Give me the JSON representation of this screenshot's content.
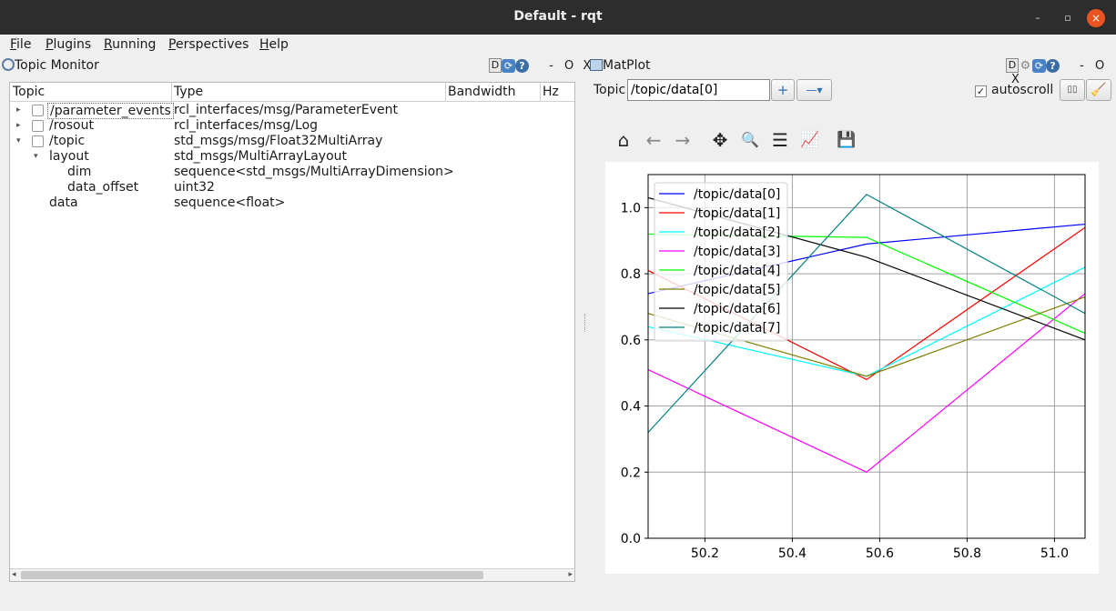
{
  "window": {
    "title": "Default - rqt",
    "minimize": "–",
    "maximize": "▫",
    "close": "×"
  },
  "menu": [
    {
      "first": "F",
      "rest": "ile"
    },
    {
      "first": "P",
      "rest": "lugins"
    },
    {
      "first": "R",
      "rest": "unning"
    },
    {
      "first": "P",
      "rest": "erspectives",
      "prefix": ""
    },
    {
      "first": "H",
      "rest": "elp"
    }
  ],
  "topic_monitor": {
    "title": "Topic Monitor",
    "controls": {
      "d": "D",
      "dash": "-",
      "o": "O",
      "x": "X"
    },
    "columns": [
      "Topic",
      "Type",
      "Bandwidth",
      "Hz"
    ],
    "rows": [
      {
        "arrow": "▸",
        "checkbox": true,
        "topic": "/parameter_events",
        "type": "rcl_interfaces/msg/ParameterEvent"
      },
      {
        "arrow": "▸",
        "checkbox": true,
        "topic": "/rosout",
        "type": "rcl_interfaces/msg/Log"
      },
      {
        "arrow": "▾",
        "checkbox": true,
        "topic": "/topic",
        "type": "std_msgs/msg/Float32MultiArray"
      },
      {
        "arrow": "▾",
        "checkbox": false,
        "topic": "layout",
        "type": "std_msgs/MultiArrayLayout"
      },
      {
        "arrow": "",
        "checkbox": false,
        "topic": "dim",
        "type": "sequence<std_msgs/MultiArrayDimension>"
      },
      {
        "arrow": "",
        "checkbox": false,
        "topic": "data_offset",
        "type": "uint32"
      },
      {
        "arrow": "",
        "checkbox": false,
        "topic": "data",
        "type": "sequence<float>"
      }
    ]
  },
  "matplot": {
    "title": "MatPlot",
    "controls": {
      "d": "D",
      "dash": "-",
      "o": "O",
      "x": "X"
    },
    "topic_label": "Topic",
    "topic_value": "/topic/data[0]",
    "add_label": "+",
    "remove_label": "—▾",
    "autoscroll_label": "autoscroll",
    "autoscroll_checked": "✓",
    "pause_label": "▯▯",
    "clear_label": "🧹",
    "toolbar": [
      {
        "name": "home-icon",
        "glyph": "⌂"
      },
      {
        "name": "back-icon",
        "glyph": "←"
      },
      {
        "name": "forward-icon",
        "glyph": "→"
      },
      {
        "name": "pan-icon",
        "glyph": "✥"
      },
      {
        "name": "zoom-icon",
        "glyph": "🔍"
      },
      {
        "name": "subplots-icon",
        "glyph": "☰"
      },
      {
        "name": "edit-curves-icon",
        "glyph": "📈"
      },
      {
        "name": "save-icon",
        "glyph": "💾"
      }
    ]
  },
  "chart_data": {
    "type": "line",
    "title": "",
    "xlabel": "",
    "ylabel": "",
    "xlim": [
      50.07,
      51.07
    ],
    "ylim": [
      0.0,
      1.1
    ],
    "xticks": [
      50.2,
      50.4,
      50.6,
      50.8,
      51.0
    ],
    "xtick_labels": [
      "50.2",
      "50.4",
      "50.6",
      "50.8",
      "51.0"
    ],
    "yticks": [
      0.0,
      0.2,
      0.4,
      0.6,
      0.8,
      1.0
    ],
    "ytick_labels": [
      "0.0",
      "0.2",
      "0.4",
      "0.6",
      "0.8",
      "1.0"
    ],
    "grid": true,
    "legend_position": "upper-left",
    "x": [
      50.07,
      50.57,
      51.07
    ],
    "series": [
      {
        "name": "/topic/data[0]",
        "color": "#0000ff",
        "values": [
          0.74,
          0.89,
          0.95
        ]
      },
      {
        "name": "/topic/data[1]",
        "color": "#ff0000",
        "values": [
          0.81,
          0.48,
          0.94
        ]
      },
      {
        "name": "/topic/data[2]",
        "color": "#00ffff",
        "values": [
          0.64,
          0.49,
          0.82
        ]
      },
      {
        "name": "/topic/data[3]",
        "color": "#ff00ff",
        "values": [
          0.51,
          0.2,
          0.74
        ]
      },
      {
        "name": "/topic/data[4]",
        "color": "#00ff00",
        "values": [
          0.92,
          0.91,
          0.62
        ]
      },
      {
        "name": "/topic/data[5]",
        "color": "#808000",
        "values": [
          0.68,
          0.49,
          0.73
        ]
      },
      {
        "name": "/topic/data[6]",
        "color": "#000000",
        "values": [
          1.03,
          0.85,
          0.6
        ]
      },
      {
        "name": "/topic/data[7]",
        "color": "#008080",
        "values": [
          0.32,
          1.04,
          0.68
        ]
      }
    ]
  }
}
